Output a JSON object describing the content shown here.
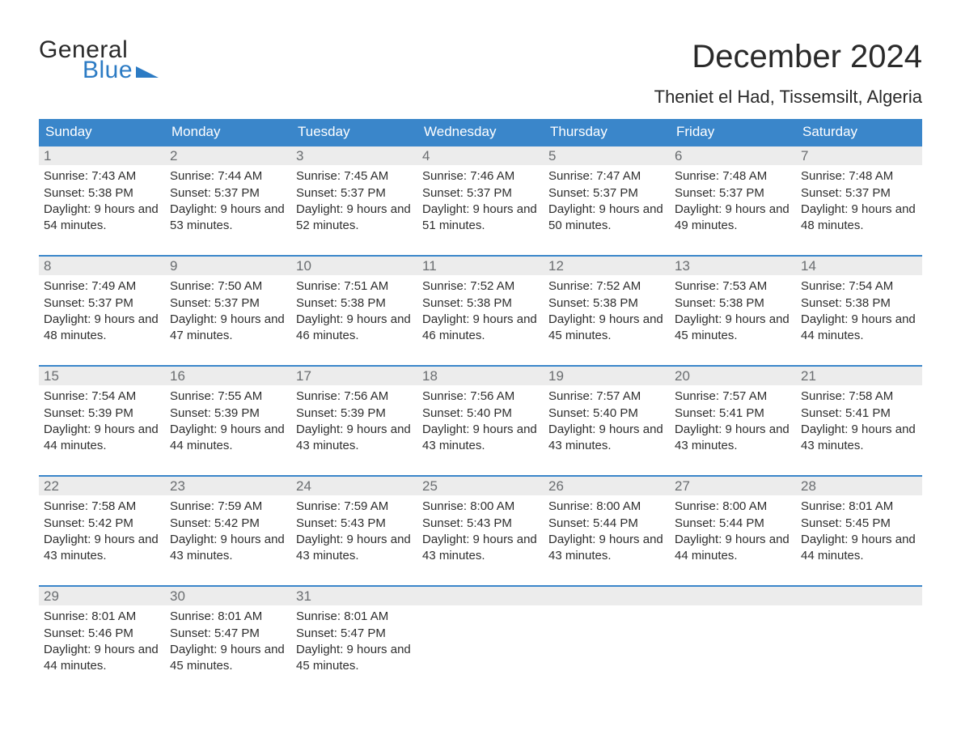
{
  "brand": {
    "line1": "General",
    "line2": "Blue",
    "mark_color": "#2c7bc4"
  },
  "title": "December 2024",
  "location": "Theniet el Had, Tissemsilt, Algeria",
  "colors": {
    "header_row_bg": "#3a86ca",
    "header_row_text": "#ffffff",
    "daynum_bg": "#ececec",
    "daynum_text": "#6a6d70",
    "week_rule": "#3a86ca",
    "page_bg": "#ffffff",
    "text": "#333333"
  },
  "weekday_labels": [
    "Sunday",
    "Monday",
    "Tuesday",
    "Wednesday",
    "Thursday",
    "Friday",
    "Saturday"
  ],
  "weeks": [
    [
      {
        "day": "1",
        "sunrise": "Sunrise: 7:43 AM",
        "sunset": "Sunset: 5:38 PM",
        "daylight": "Daylight: 9 hours and 54 minutes."
      },
      {
        "day": "2",
        "sunrise": "Sunrise: 7:44 AM",
        "sunset": "Sunset: 5:37 PM",
        "daylight": "Daylight: 9 hours and 53 minutes."
      },
      {
        "day": "3",
        "sunrise": "Sunrise: 7:45 AM",
        "sunset": "Sunset: 5:37 PM",
        "daylight": "Daylight: 9 hours and 52 minutes."
      },
      {
        "day": "4",
        "sunrise": "Sunrise: 7:46 AM",
        "sunset": "Sunset: 5:37 PM",
        "daylight": "Daylight: 9 hours and 51 minutes."
      },
      {
        "day": "5",
        "sunrise": "Sunrise: 7:47 AM",
        "sunset": "Sunset: 5:37 PM",
        "daylight": "Daylight: 9 hours and 50 minutes."
      },
      {
        "day": "6",
        "sunrise": "Sunrise: 7:48 AM",
        "sunset": "Sunset: 5:37 PM",
        "daylight": "Daylight: 9 hours and 49 minutes."
      },
      {
        "day": "7",
        "sunrise": "Sunrise: 7:48 AM",
        "sunset": "Sunset: 5:37 PM",
        "daylight": "Daylight: 9 hours and 48 minutes."
      }
    ],
    [
      {
        "day": "8",
        "sunrise": "Sunrise: 7:49 AM",
        "sunset": "Sunset: 5:37 PM",
        "daylight": "Daylight: 9 hours and 48 minutes."
      },
      {
        "day": "9",
        "sunrise": "Sunrise: 7:50 AM",
        "sunset": "Sunset: 5:37 PM",
        "daylight": "Daylight: 9 hours and 47 minutes."
      },
      {
        "day": "10",
        "sunrise": "Sunrise: 7:51 AM",
        "sunset": "Sunset: 5:38 PM",
        "daylight": "Daylight: 9 hours and 46 minutes."
      },
      {
        "day": "11",
        "sunrise": "Sunrise: 7:52 AM",
        "sunset": "Sunset: 5:38 PM",
        "daylight": "Daylight: 9 hours and 46 minutes."
      },
      {
        "day": "12",
        "sunrise": "Sunrise: 7:52 AM",
        "sunset": "Sunset: 5:38 PM",
        "daylight": "Daylight: 9 hours and 45 minutes."
      },
      {
        "day": "13",
        "sunrise": "Sunrise: 7:53 AM",
        "sunset": "Sunset: 5:38 PM",
        "daylight": "Daylight: 9 hours and 45 minutes."
      },
      {
        "day": "14",
        "sunrise": "Sunrise: 7:54 AM",
        "sunset": "Sunset: 5:38 PM",
        "daylight": "Daylight: 9 hours and 44 minutes."
      }
    ],
    [
      {
        "day": "15",
        "sunrise": "Sunrise: 7:54 AM",
        "sunset": "Sunset: 5:39 PM",
        "daylight": "Daylight: 9 hours and 44 minutes."
      },
      {
        "day": "16",
        "sunrise": "Sunrise: 7:55 AM",
        "sunset": "Sunset: 5:39 PM",
        "daylight": "Daylight: 9 hours and 44 minutes."
      },
      {
        "day": "17",
        "sunrise": "Sunrise: 7:56 AM",
        "sunset": "Sunset: 5:39 PM",
        "daylight": "Daylight: 9 hours and 43 minutes."
      },
      {
        "day": "18",
        "sunrise": "Sunrise: 7:56 AM",
        "sunset": "Sunset: 5:40 PM",
        "daylight": "Daylight: 9 hours and 43 minutes."
      },
      {
        "day": "19",
        "sunrise": "Sunrise: 7:57 AM",
        "sunset": "Sunset: 5:40 PM",
        "daylight": "Daylight: 9 hours and 43 minutes."
      },
      {
        "day": "20",
        "sunrise": "Sunrise: 7:57 AM",
        "sunset": "Sunset: 5:41 PM",
        "daylight": "Daylight: 9 hours and 43 minutes."
      },
      {
        "day": "21",
        "sunrise": "Sunrise: 7:58 AM",
        "sunset": "Sunset: 5:41 PM",
        "daylight": "Daylight: 9 hours and 43 minutes."
      }
    ],
    [
      {
        "day": "22",
        "sunrise": "Sunrise: 7:58 AM",
        "sunset": "Sunset: 5:42 PM",
        "daylight": "Daylight: 9 hours and 43 minutes."
      },
      {
        "day": "23",
        "sunrise": "Sunrise: 7:59 AM",
        "sunset": "Sunset: 5:42 PM",
        "daylight": "Daylight: 9 hours and 43 minutes."
      },
      {
        "day": "24",
        "sunrise": "Sunrise: 7:59 AM",
        "sunset": "Sunset: 5:43 PM",
        "daylight": "Daylight: 9 hours and 43 minutes."
      },
      {
        "day": "25",
        "sunrise": "Sunrise: 8:00 AM",
        "sunset": "Sunset: 5:43 PM",
        "daylight": "Daylight: 9 hours and 43 minutes."
      },
      {
        "day": "26",
        "sunrise": "Sunrise: 8:00 AM",
        "sunset": "Sunset: 5:44 PM",
        "daylight": "Daylight: 9 hours and 43 minutes."
      },
      {
        "day": "27",
        "sunrise": "Sunrise: 8:00 AM",
        "sunset": "Sunset: 5:44 PM",
        "daylight": "Daylight: 9 hours and 44 minutes."
      },
      {
        "day": "28",
        "sunrise": "Sunrise: 8:01 AM",
        "sunset": "Sunset: 5:45 PM",
        "daylight": "Daylight: 9 hours and 44 minutes."
      }
    ],
    [
      {
        "day": "29",
        "sunrise": "Sunrise: 8:01 AM",
        "sunset": "Sunset: 5:46 PM",
        "daylight": "Daylight: 9 hours and 44 minutes."
      },
      {
        "day": "30",
        "sunrise": "Sunrise: 8:01 AM",
        "sunset": "Sunset: 5:47 PM",
        "daylight": "Daylight: 9 hours and 45 minutes."
      },
      {
        "day": "31",
        "sunrise": "Sunrise: 8:01 AM",
        "sunset": "Sunset: 5:47 PM",
        "daylight": "Daylight: 9 hours and 45 minutes."
      },
      null,
      null,
      null,
      null
    ]
  ]
}
